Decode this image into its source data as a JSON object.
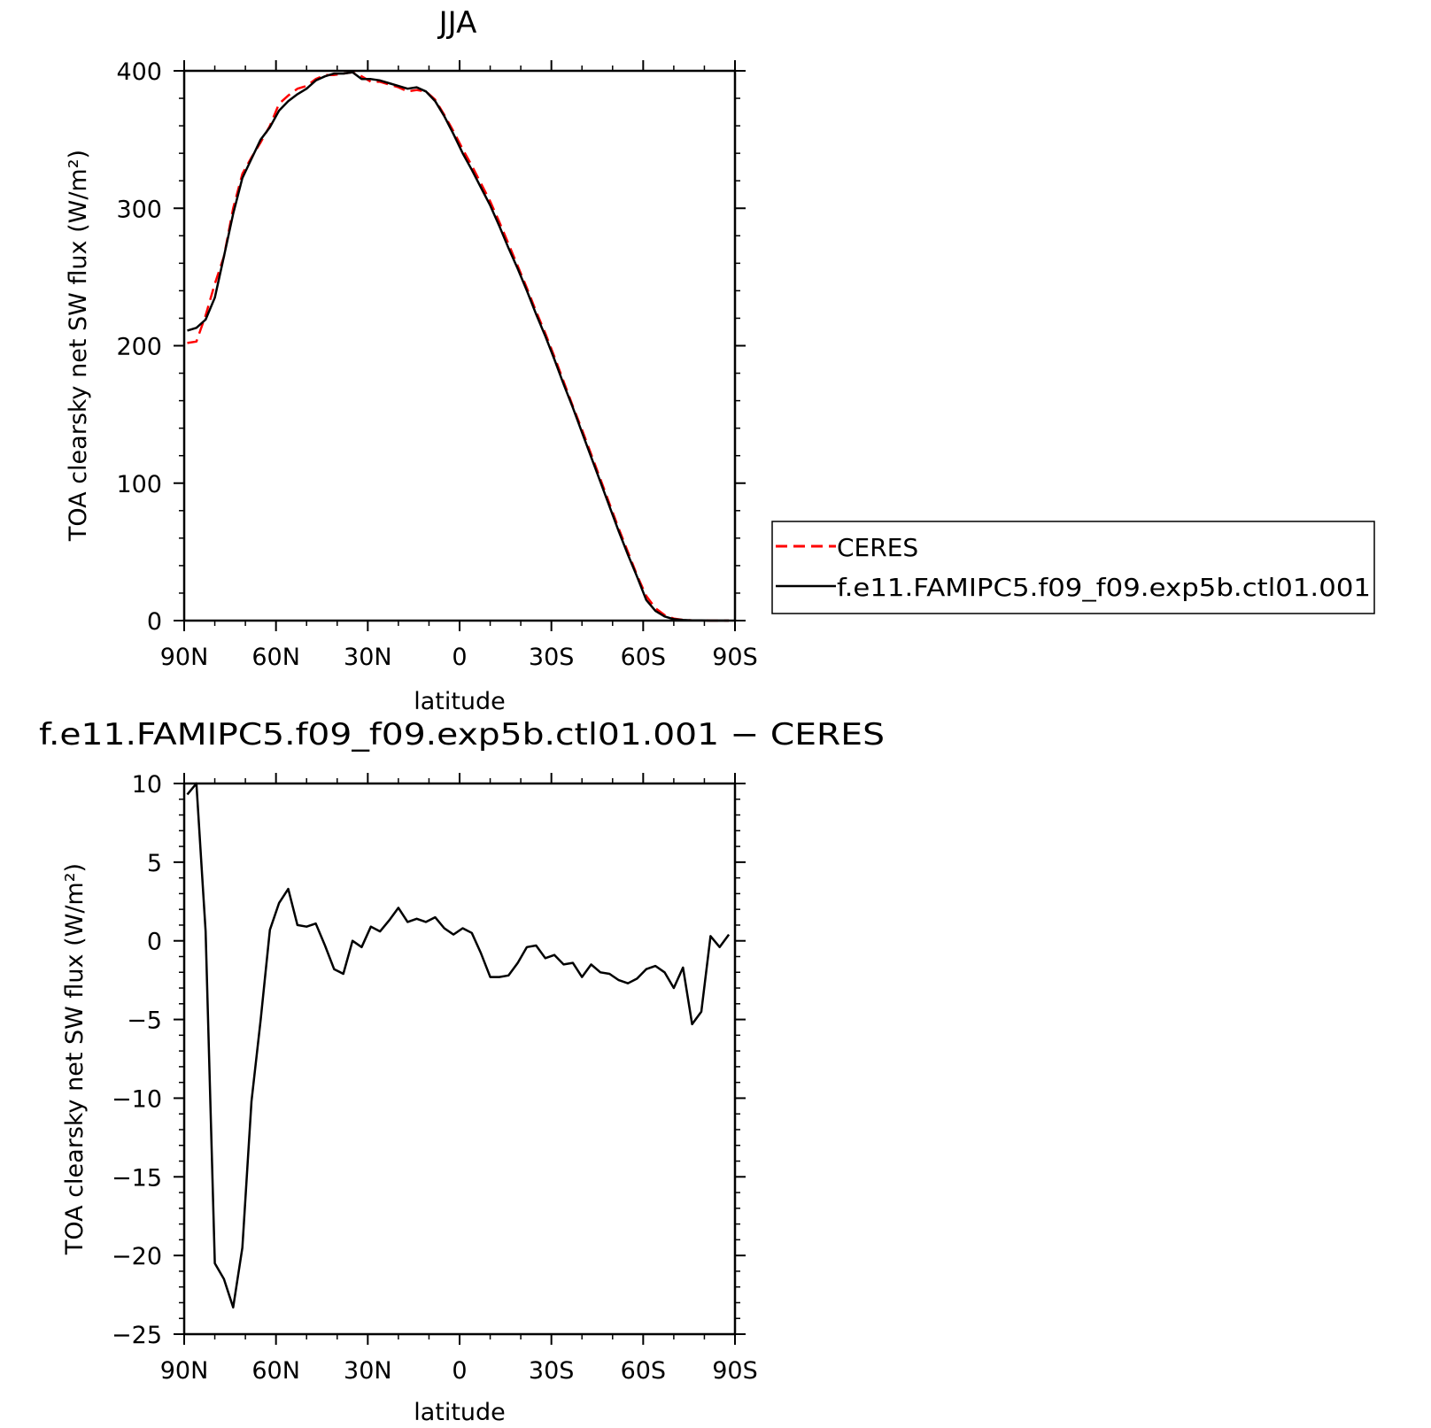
{
  "colors": {
    "ceres": "#ff0000",
    "model": "#000000",
    "axis": "#000000",
    "background": "#ffffff"
  },
  "chart_data": [
    {
      "type": "line",
      "title": "JJA",
      "xlabel": "latitude",
      "ylabel": "TOA clearsky net SW flux (W/m²)",
      "xlim": [
        90,
        -90
      ],
      "ylim": [
        0,
        400
      ],
      "x_ticks": [
        90,
        60,
        30,
        0,
        -30,
        -60,
        -90
      ],
      "x_tick_labels": [
        "90N",
        "60N",
        "30N",
        "0",
        "30S",
        "60S",
        "90S"
      ],
      "y_ticks": [
        0,
        100,
        200,
        300,
        400
      ],
      "y_tick_labels": [
        "0",
        "100",
        "200",
        "300",
        "400"
      ],
      "legend_position": "right",
      "series": [
        {
          "name": "CERES",
          "style": "dashed",
          "color": "#ff0000",
          "x": [
            89,
            86,
            83,
            80,
            77,
            74,
            71,
            68,
            65,
            62,
            59,
            56,
            53,
            50,
            47,
            44,
            41,
            38,
            35,
            32,
            29,
            26,
            23,
            20,
            17,
            14,
            11,
            8,
            5,
            2,
            -1,
            -4,
            -7,
            -10,
            -13,
            -16,
            -19,
            -22,
            -25,
            -28,
            -31,
            -34,
            -37,
            -40,
            -43,
            -46,
            -49,
            -52,
            -55,
            -58,
            -61,
            -64,
            -67,
            -70,
            -73,
            -76,
            -79,
            -82,
            -85,
            -88
          ],
          "y": [
            202,
            203,
            222,
            245,
            265,
            300,
            325,
            337,
            348,
            360,
            376,
            382,
            387,
            389,
            394,
            397,
            397,
            398,
            399,
            396,
            392,
            392,
            390,
            388,
            385,
            386,
            385,
            379,
            368,
            356,
            343,
            331,
            318,
            305,
            290,
            274,
            258,
            242,
            225,
            209,
            192,
            174,
            156,
            139,
            121,
            103,
            85,
            67,
            50,
            33,
            18,
            9,
            4,
            1.5,
            0.5,
            0.2,
            0.1,
            0,
            0,
            0
          ]
        },
        {
          "name": "f.e11.FAMIPC5.f09_f09.exp5b.ctl01.001",
          "style": "solid",
          "color": "#000000",
          "x": [
            89,
            86,
            83,
            80,
            77,
            74,
            71,
            68,
            65,
            62,
            59,
            56,
            53,
            50,
            47,
            44,
            41,
            38,
            35,
            32,
            29,
            26,
            23,
            20,
            17,
            14,
            11,
            8,
            5,
            2,
            -1,
            -4,
            -7,
            -10,
            -13,
            -16,
            -19,
            -22,
            -25,
            -28,
            -31,
            -34,
            -37,
            -40,
            -43,
            -46,
            -49,
            -52,
            -55,
            -58,
            -61,
            -64,
            -67,
            -70,
            -73,
            -76,
            -79,
            -82,
            -85,
            -88
          ],
          "y": [
            211,
            213,
            219,
            235,
            265,
            296,
            322,
            336,
            350,
            359,
            371,
            378,
            383,
            387,
            393,
            396,
            398,
            398,
            399,
            394,
            394,
            393,
            391,
            389,
            387,
            388,
            385,
            378,
            367,
            354,
            340,
            328,
            315,
            302,
            287,
            271,
            256,
            240,
            223,
            207,
            190,
            172,
            155,
            137,
            119,
            101,
            83,
            65,
            48,
            32,
            15,
            7,
            3,
            1,
            0.5,
            0.2,
            0.1,
            0,
            0,
            0
          ]
        }
      ]
    },
    {
      "type": "line",
      "title": "f.e11.FAMIPC5.f09_f09.exp5b.ctl01.001 − CERES",
      "xlabel": "latitude",
      "ylabel": "TOA clearsky net SW flux (W/m²)",
      "xlim": [
        90,
        -90
      ],
      "ylim": [
        -25,
        10
      ],
      "x_ticks": [
        90,
        60,
        30,
        0,
        -30,
        -60,
        -90
      ],
      "x_tick_labels": [
        "90N",
        "60N",
        "30N",
        "0",
        "30S",
        "60S",
        "90S"
      ],
      "y_ticks": [
        -25,
        -20,
        -15,
        -10,
        -5,
        0,
        5,
        10
      ],
      "y_tick_labels": [
        "−25",
        "−20",
        "−15",
        "−10",
        "−5",
        "0",
        "5",
        "10"
      ],
      "series": [
        {
          "style": "solid",
          "color": "#000000",
          "x": [
            89,
            86,
            83,
            80,
            77,
            74,
            71,
            68,
            65,
            62,
            59,
            56,
            53,
            50,
            47,
            44,
            41,
            38,
            35,
            32,
            29,
            26,
            23,
            20,
            17,
            14,
            11,
            8,
            5,
            2,
            -1,
            -4,
            -7,
            -10,
            -13,
            -16,
            -19,
            -22,
            -25,
            -28,
            -31,
            -34,
            -37,
            -40,
            -43,
            -46,
            -49,
            -52,
            -55,
            -58,
            -61,
            -64,
            -67,
            -70,
            -73,
            -76,
            -79,
            -82,
            -85,
            -88
          ],
          "y": [
            9.3,
            10.0,
            0.6,
            -20.5,
            -21.5,
            -23.3,
            -19.5,
            -10.2,
            -5.0,
            0.7,
            2.4,
            3.3,
            1.0,
            0.9,
            1.1,
            -0.3,
            -1.8,
            -2.1,
            0.0,
            -0.4,
            0.9,
            0.6,
            1.3,
            2.1,
            1.2,
            1.4,
            1.2,
            1.5,
            0.8,
            0.4,
            0.8,
            0.5,
            -0.8,
            -2.3,
            -2.3,
            -2.2,
            -1.4,
            -0.4,
            -0.3,
            -1.1,
            -0.9,
            -1.5,
            -1.4,
            -2.3,
            -1.5,
            -2.0,
            -2.1,
            -2.5,
            -2.7,
            -2.4,
            -1.8,
            -1.6,
            -2.0,
            -3.0,
            -1.7,
            -5.3,
            -4.5,
            0.3,
            -0.4,
            0.4
          ]
        }
      ]
    }
  ]
}
